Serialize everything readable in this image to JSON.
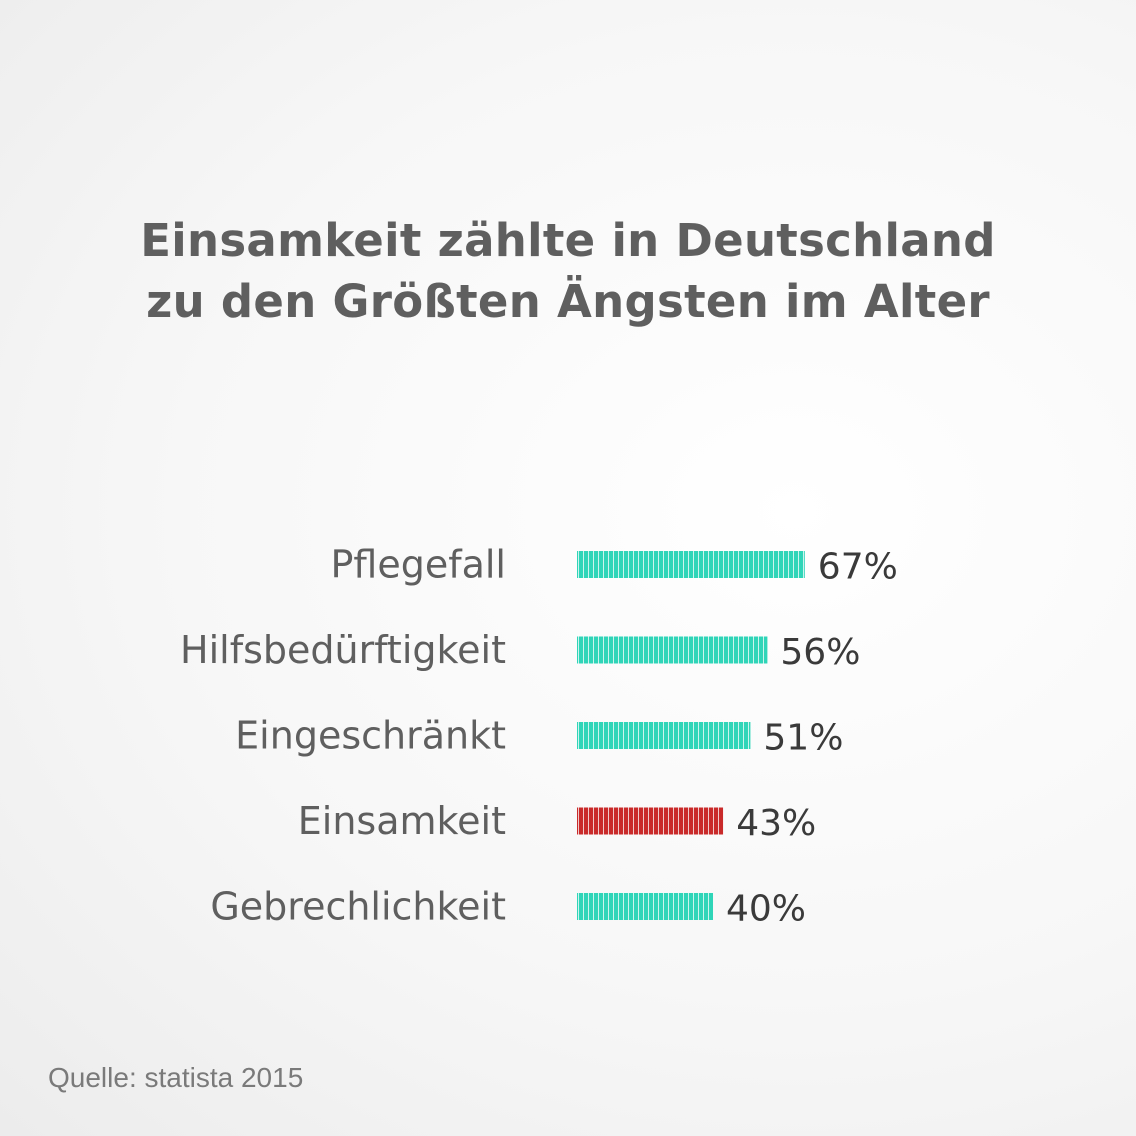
{
  "chart_data": {
    "type": "bar",
    "orientation": "horizontal",
    "title_lines": [
      "Einsamkeit zählte in Deutschland",
      "zu den Größten Ängsten im Alter"
    ],
    "categories": [
      "Pflegefall",
      "Hilfsbedürftigkeit",
      "Eingeschränkt",
      "Einsamkeit",
      "Gebrechlichkeit"
    ],
    "values": [
      67,
      56,
      51,
      43,
      40
    ],
    "value_labels": [
      "67%",
      "56%",
      "51%",
      "43%",
      "40%"
    ],
    "unit": "%",
    "highlight": "Einsamkeit",
    "colors": {
      "default": "#2fd5b8",
      "highlight": "#c92a2a"
    },
    "grid": false,
    "legend": "none"
  },
  "source": "Quelle: statista 2015"
}
